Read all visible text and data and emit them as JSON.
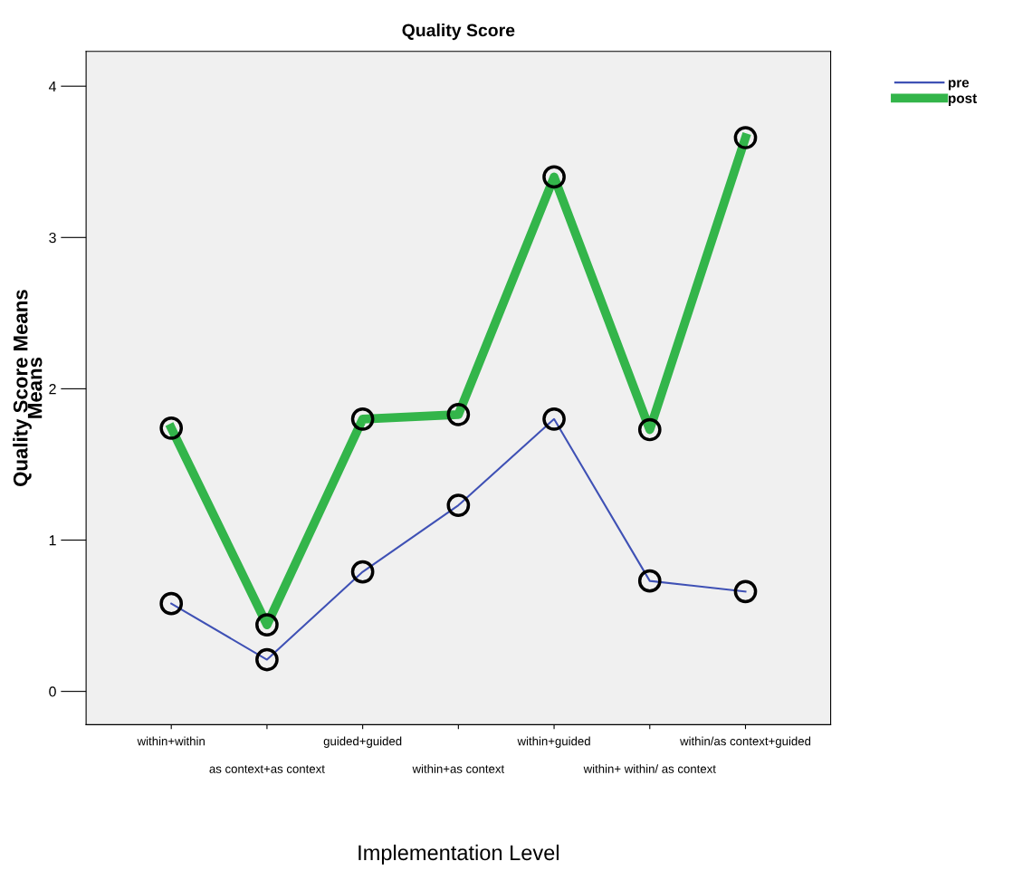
{
  "chart_data": {
    "type": "line",
    "title": "Quality Score",
    "xlabel": "Implementation Level",
    "ylabel": "Quality Score Means\nMeans",
    "categories": [
      "within+within",
      "as context+as context",
      "guided+guided",
      "within+as context",
      "within+guided",
      "within+ within/ as context",
      "within/as context+guided"
    ],
    "series": [
      {
        "name": "pre",
        "color": "#3f51b5",
        "values": [
          0.58,
          0.21,
          0.79,
          1.23,
          1.8,
          0.73,
          0.66
        ]
      },
      {
        "name": "post",
        "color": "#33b54a",
        "values": [
          1.74,
          0.44,
          1.8,
          1.83,
          3.4,
          1.73,
          3.66
        ]
      }
    ],
    "ylim": [
      -0.22,
      4.23
    ],
    "yticks": [
      0,
      1,
      2,
      3,
      4
    ],
    "grid": false,
    "legend": "top right",
    "marker": "circle"
  }
}
